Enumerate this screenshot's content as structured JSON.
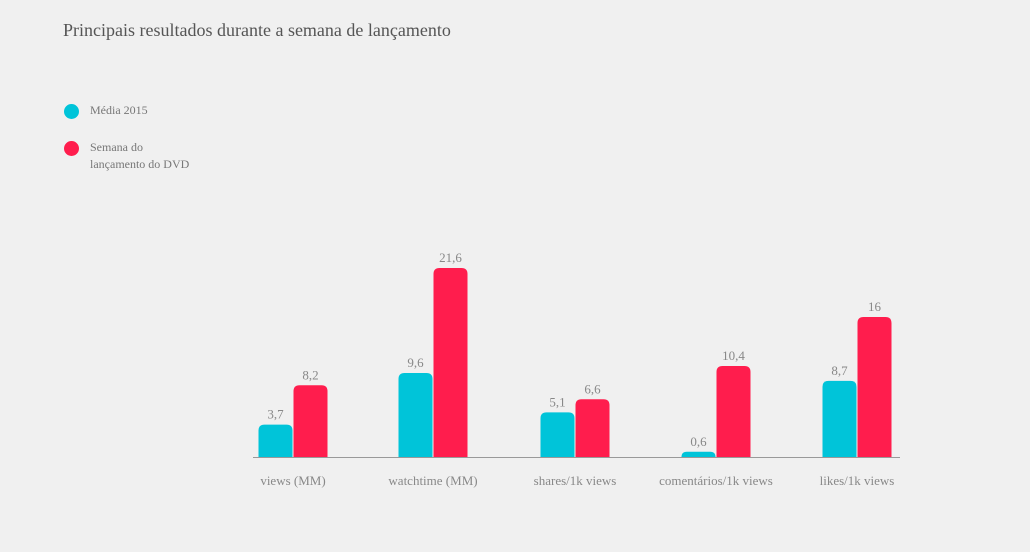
{
  "title": "Principais resultados durante a semana de lançamento",
  "colors": {
    "media": "#00c4d9",
    "semana": "#ff1d4d",
    "axis": "#999999"
  },
  "legend": [
    {
      "label": "Média 2015",
      "color": "#00c4d9"
    },
    {
      "label": "Semana do\nlançamento do DVD",
      "color": "#ff1d4d"
    }
  ],
  "chart_data": {
    "type": "bar",
    "title": "Principais resultados durante a semana de lançamento",
    "categories": [
      "views (MM)",
      "watchtime (MM)",
      "shares/1k views",
      "comentários/1k views",
      "likes/1k views"
    ],
    "series": [
      {
        "name": "Média 2015",
        "values": [
          3.7,
          9.6,
          5.1,
          0.6,
          8.7
        ],
        "labels": [
          "3,7",
          "9,6",
          "5,1",
          "0,6",
          "8,7"
        ]
      },
      {
        "name": "Semana do lançamento do DVD",
        "values": [
          8.2,
          21.6,
          6.6,
          10.4,
          16
        ],
        "labels": [
          "8,2",
          "21,6",
          "6,6",
          "10,4",
          "16"
        ]
      }
    ],
    "ylim": [
      0,
      21.6
    ],
    "grid": false,
    "legend_position": "top-left"
  }
}
